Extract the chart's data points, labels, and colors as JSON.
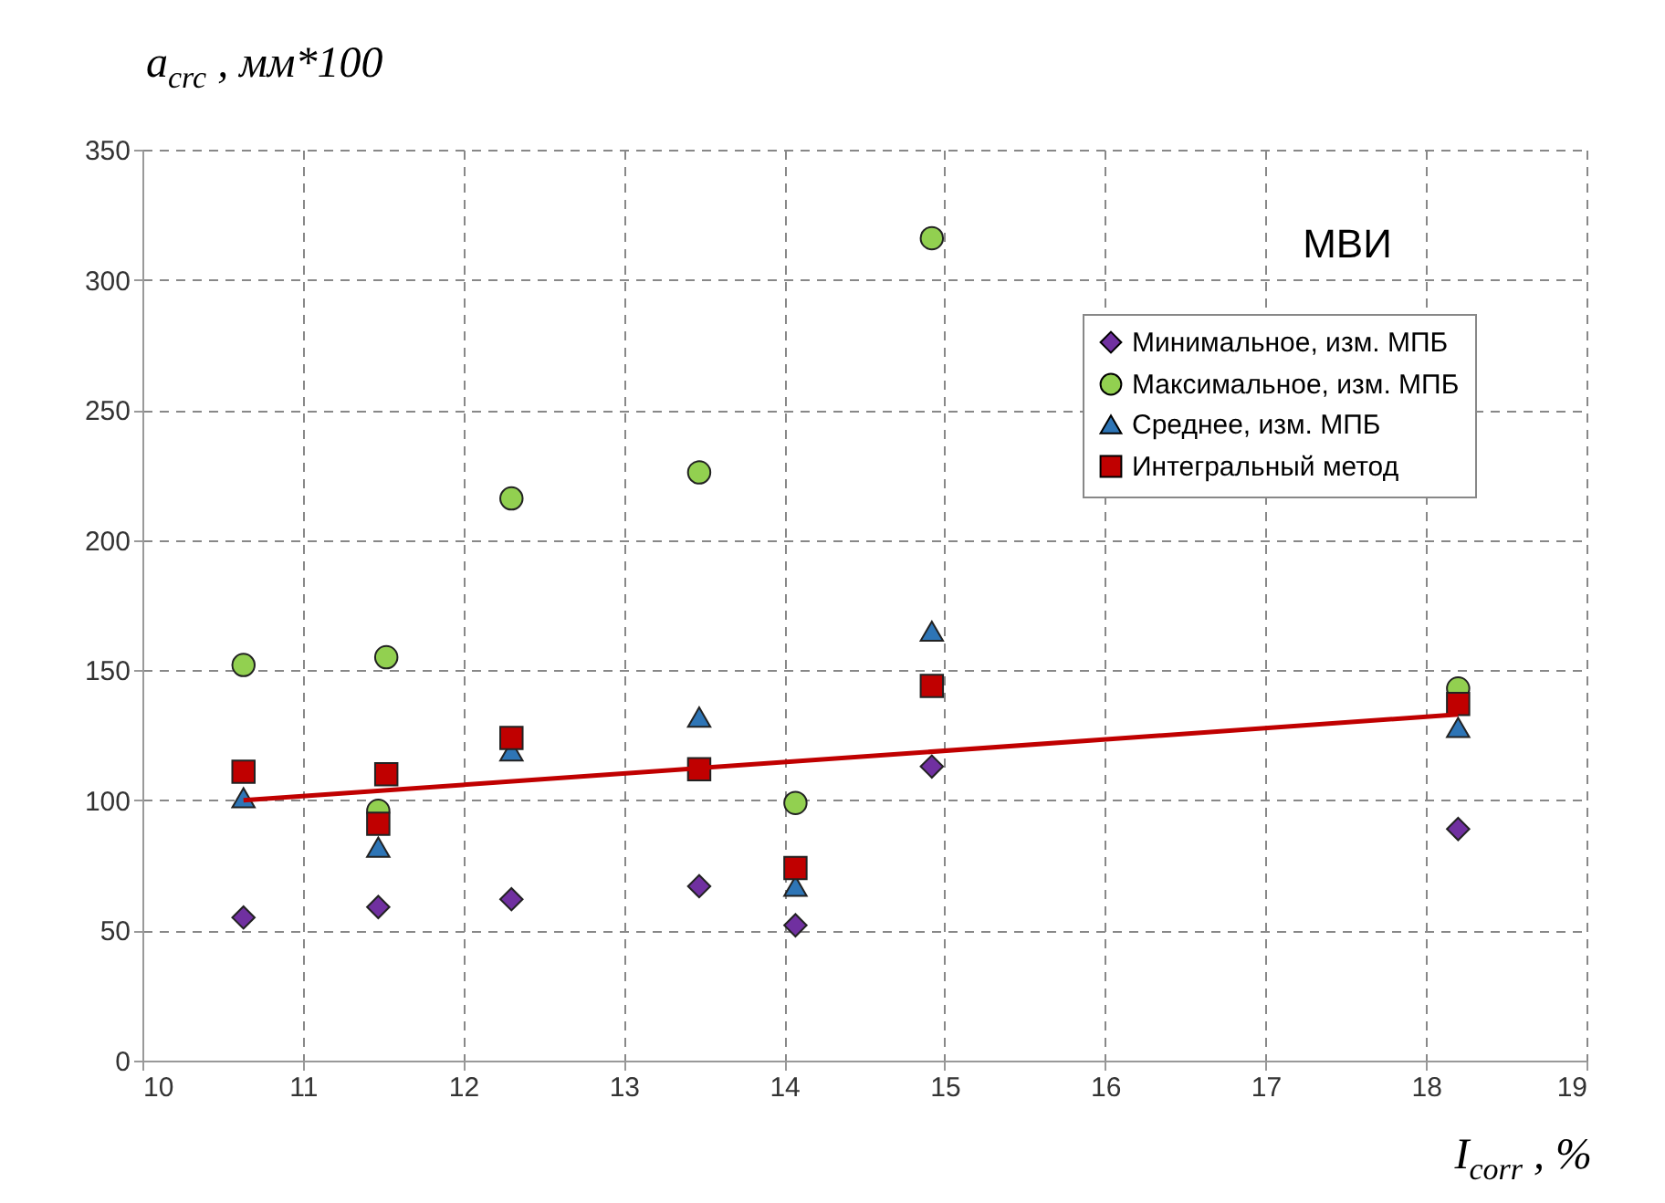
{
  "chart_data": {
    "type": "scatter",
    "xlabel": "I$_{corr}$ , %",
    "ylabel": "a$_{crc}$ , мм*100",
    "annotations": [
      "МВИ"
    ],
    "x": [
      10.63,
      11.47,
      11.52,
      12.3,
      13.47,
      14.07,
      14.92,
      18.2
    ],
    "series": [
      {
        "name": "Минимальное, изм. МПБ",
        "color": "#7030a0",
        "marker": "diamond",
        "values": [
          55,
          59,
          null,
          62,
          67,
          52,
          113,
          89
        ]
      },
      {
        "name": "Максимальное, изм. МПБ",
        "color": "#92d050",
        "marker": "circle",
        "values": [
          152,
          96,
          155,
          216,
          226,
          99,
          316,
          143
        ]
      },
      {
        "name": "Среднее, изм. МПБ",
        "color": "#2e75b6",
        "marker": "triangle",
        "values": [
          101,
          82,
          null,
          119,
          132,
          67,
          165,
          128
        ]
      },
      {
        "name": "Интегральный метод",
        "color": "#c00000",
        "marker": "square",
        "values": [
          111,
          91,
          110,
          124,
          112,
          74,
          144,
          137
        ]
      },
      {
        "type": "line",
        "color": "#c00000",
        "marker": "none",
        "line_style": "solid",
        "x": [
          10.63,
          18.2
        ],
        "values": [
          100,
          133
        ]
      }
    ],
    "xlim": [
      10,
      19
    ],
    "xticks": [
      10,
      11,
      12,
      13,
      14,
      15,
      16,
      17,
      18,
      19
    ],
    "ylim": [
      0,
      350
    ],
    "yticks": [
      0,
      50,
      100,
      150,
      200,
      250,
      300,
      350
    ],
    "grid": true,
    "legend": "top right"
  }
}
